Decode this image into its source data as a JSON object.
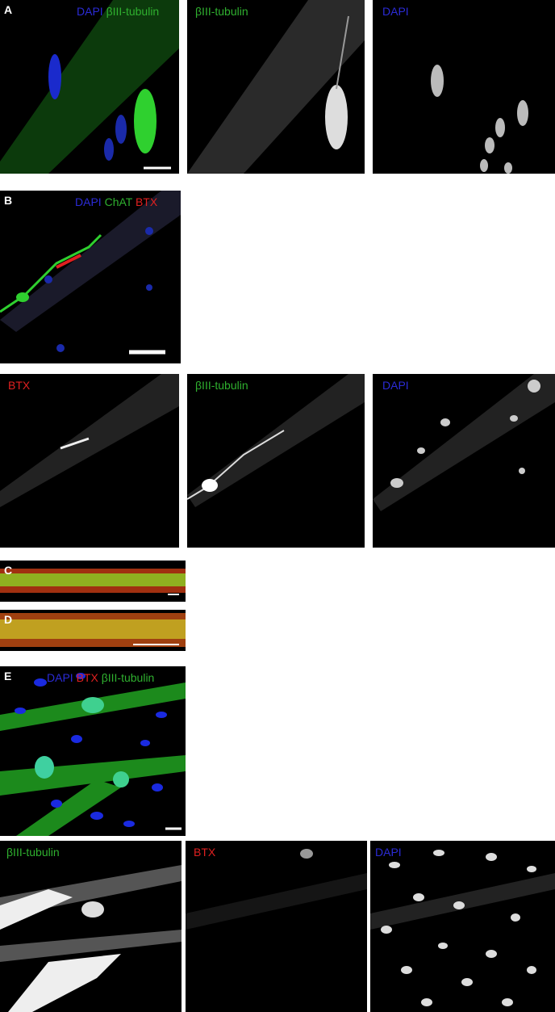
{
  "panels": [
    {
      "letter": "A",
      "images": [
        [
          "DAPI",
          "βIII-tubulin"
        ],
        [
          "βIII-tubulin"
        ],
        [
          "DAPI"
        ]
      ]
    },
    {
      "letter": "B",
      "images": [
        [
          "DAPI",
          "ChAT",
          "BTX"
        ],
        [
          "BTX"
        ],
        [
          "βIII-tubulin"
        ],
        [
          "DAPI"
        ]
      ]
    },
    {
      "letter": "C"
    },
    {
      "letter": "D"
    },
    {
      "letter": "E",
      "images": [
        [
          "DAPI",
          "BTX",
          "βIII-tubulin"
        ],
        [
          "βIII-tubulin"
        ],
        [
          "BTX"
        ],
        [
          "DAPI"
        ]
      ]
    }
  ]
}
